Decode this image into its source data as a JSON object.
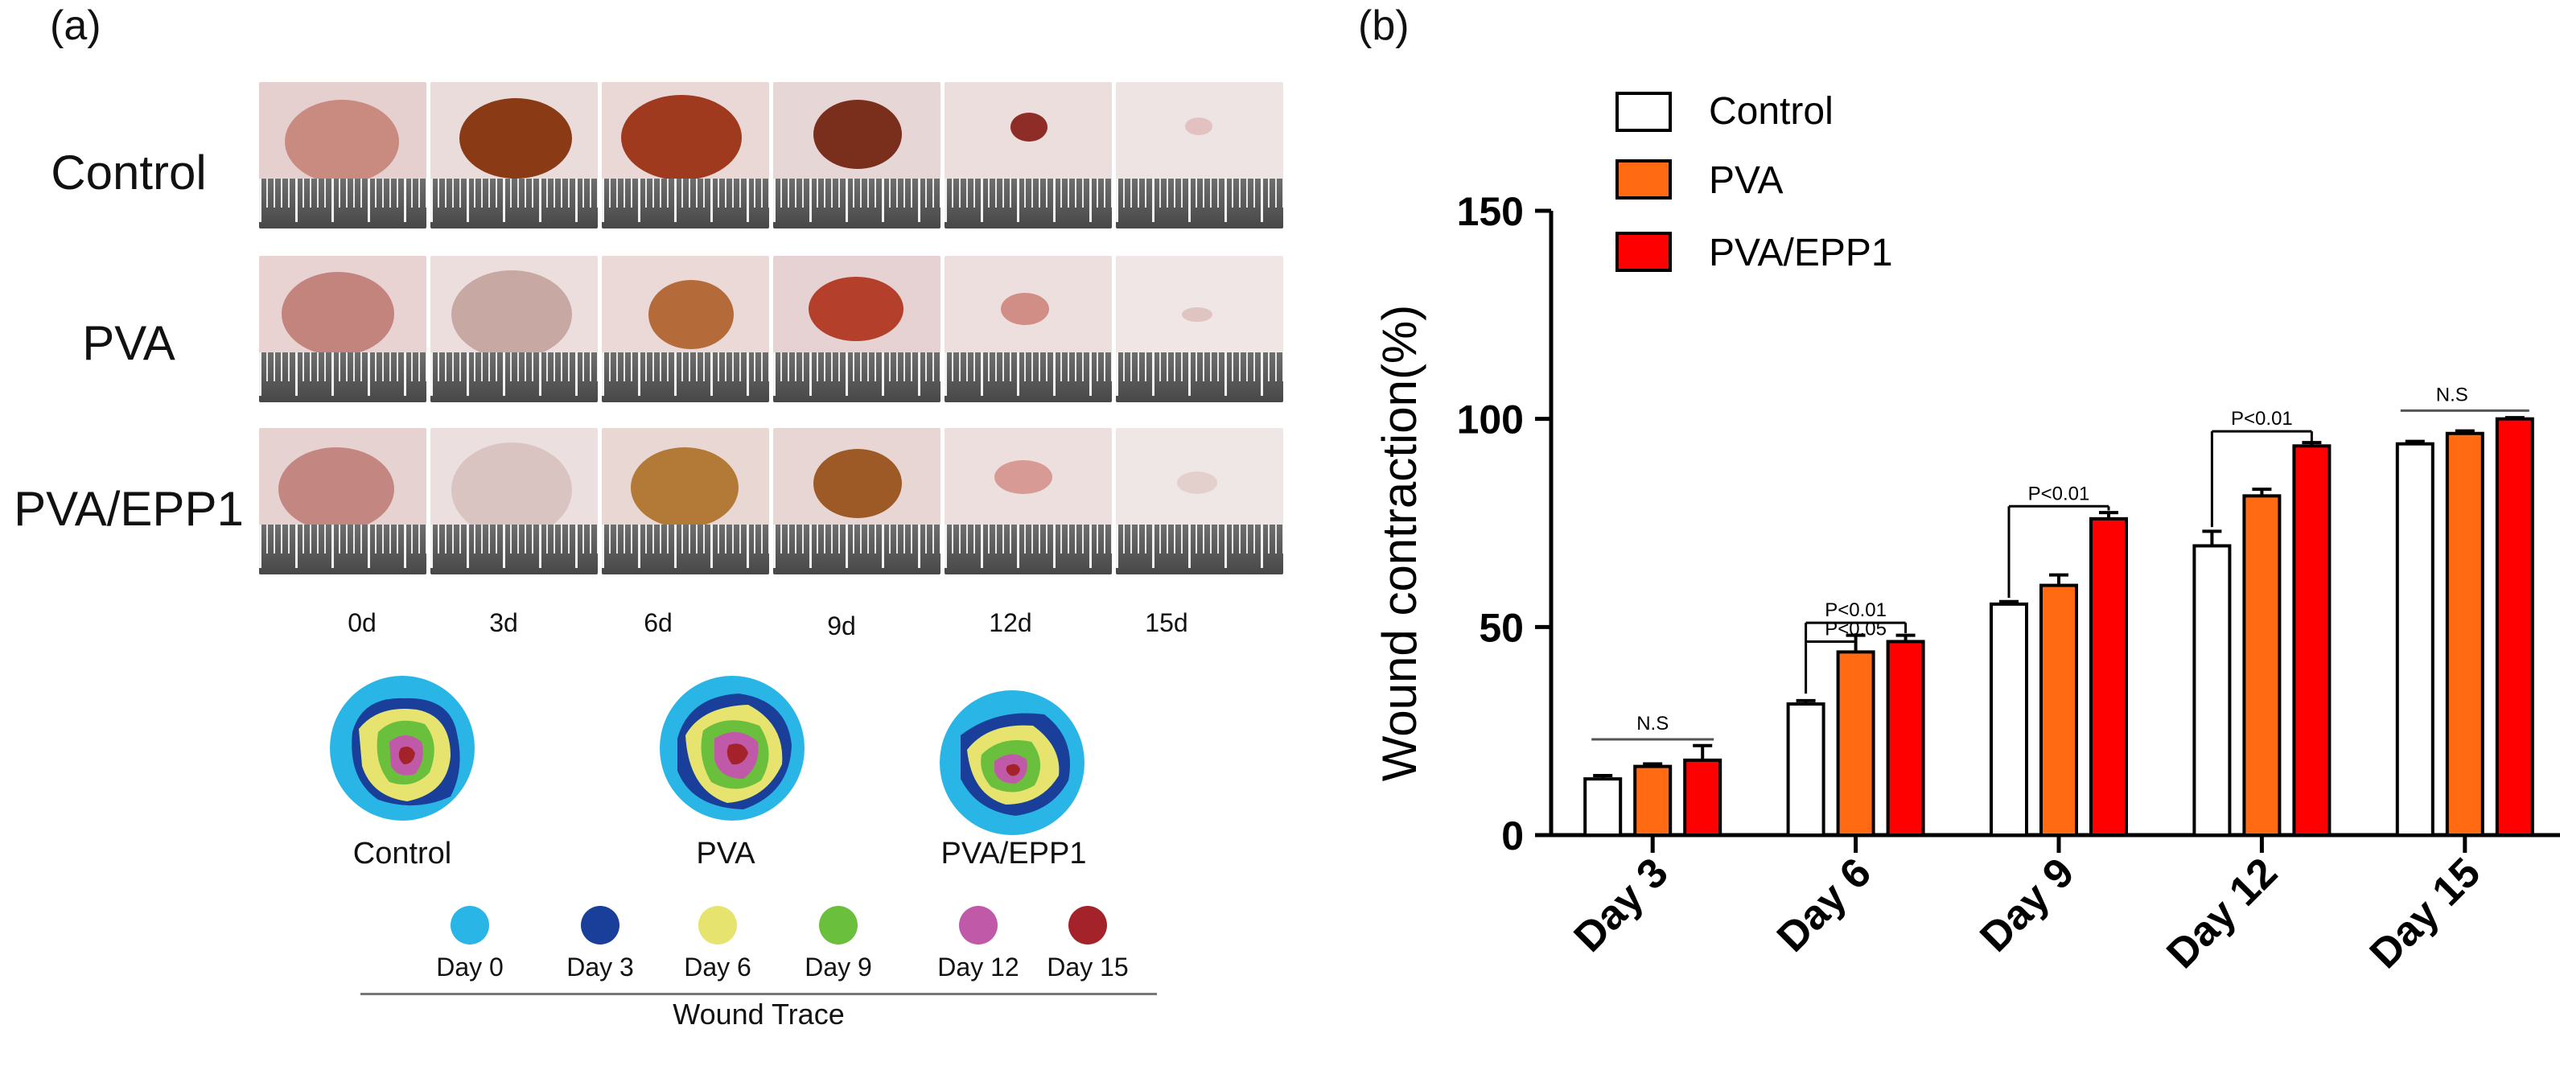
{
  "panel_a": {
    "label": "(a)",
    "rows": [
      "Control",
      "PVA",
      "PVA/EPP1"
    ],
    "days": [
      "0d",
      "3d",
      "6d",
      "9d",
      "12d",
      "15d"
    ],
    "traces": [
      "Control",
      "PVA",
      "PVA/EPP1"
    ],
    "legend": [
      {
        "label": "Day 0",
        "color": "#29b6e6"
      },
      {
        "label": "Day 3",
        "color": "#1a3f9a"
      },
      {
        "label": "Day 6",
        "color": "#e6e36e"
      },
      {
        "label": "Day 9",
        "color": "#6abf3c"
      },
      {
        "label": "Day 12",
        "color": "#c05aa8"
      },
      {
        "label": "Day 15",
        "color": "#a4232a"
      }
    ],
    "legend_title": "Wound Trace"
  },
  "chart_data": {
    "type": "bar",
    "panel_label": "(b)",
    "categories": [
      "Day 3",
      "Day 6",
      "Day 9",
      "Day 12",
      "Day 15"
    ],
    "series": [
      {
        "name": "Control",
        "color": "#ffffff",
        "values": [
          13.5,
          31.5,
          55.5,
          69.5,
          94
        ],
        "errors": [
          0.8,
          0.8,
          0.6,
          3.5,
          0.6
        ]
      },
      {
        "name": "PVA",
        "color": "#ff6a13",
        "values": [
          16.5,
          44,
          60,
          81.5,
          96.5
        ],
        "errors": [
          0.6,
          4,
          2.5,
          1.6,
          0.6
        ]
      },
      {
        "name": "PVA/EPP1",
        "color": "#ff0000",
        "values": [
          18,
          46.5,
          76,
          93.5,
          100
        ],
        "errors": [
          3.5,
          1.5,
          1.5,
          0.8,
          0.3
        ]
      }
    ],
    "title": "",
    "xlabel": "",
    "ylabel": "Wound contraction(%)",
    "ylim": [
      0,
      150
    ],
    "yticks": [
      0,
      50,
      100,
      150
    ],
    "legend_position": "top-left",
    "annotations": [
      {
        "text": "N.S",
        "category": "Day 3"
      },
      {
        "text": "P<0.01",
        "category": "Day 6"
      },
      {
        "text": "P<0.05",
        "category": "Day 6"
      },
      {
        "text": "P<0.01",
        "category": "Day 9"
      },
      {
        "text": "P<0.01",
        "category": "Day 12"
      },
      {
        "text": "N.S",
        "category": "Day 15"
      }
    ]
  }
}
